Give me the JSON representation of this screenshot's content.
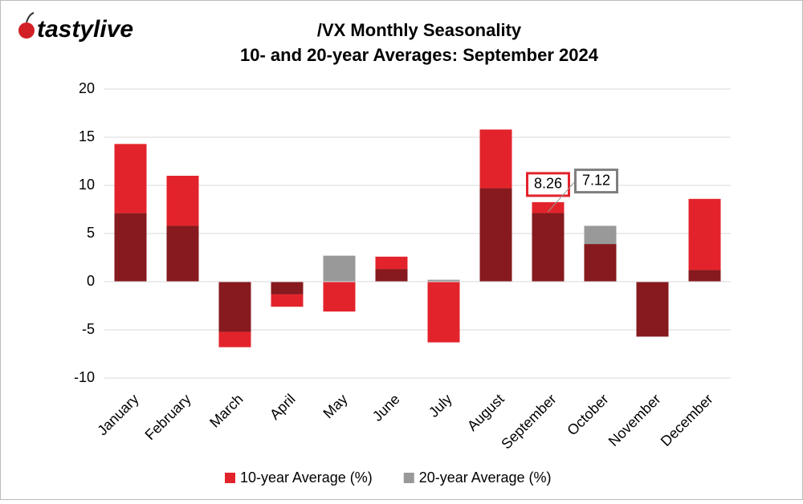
{
  "brand": "tastylive",
  "chart_data": {
    "type": "overlap-bar",
    "title": "/VX Monthly Seasonality",
    "subtitle": "10- and 20-year Averages: September 2024",
    "categories": [
      "January",
      "February",
      "March",
      "April",
      "May",
      "June",
      "July",
      "August",
      "September",
      "October",
      "November",
      "December"
    ],
    "series": [
      {
        "name": "10-year Average (%)",
        "color": "#e3232b",
        "values": [
          14.3,
          11.0,
          -6.8,
          -2.6,
          -3.1,
          2.6,
          -6.3,
          15.8,
          8.26,
          3.9,
          -5.7,
          8.6
        ]
      },
      {
        "name": "20-year Average (%)",
        "color": "#999999",
        "values": [
          7.1,
          5.8,
          -5.2,
          -1.3,
          2.7,
          1.3,
          0.2,
          9.7,
          7.12,
          5.8,
          -5.7,
          1.2
        ]
      }
    ],
    "overlap_color": "#861a1e",
    "ylim": [
      -10,
      20
    ],
    "yticks": [
      -10,
      -5,
      0,
      5,
      10,
      15,
      20
    ],
    "grid": true,
    "legend": "bottom"
  }
}
